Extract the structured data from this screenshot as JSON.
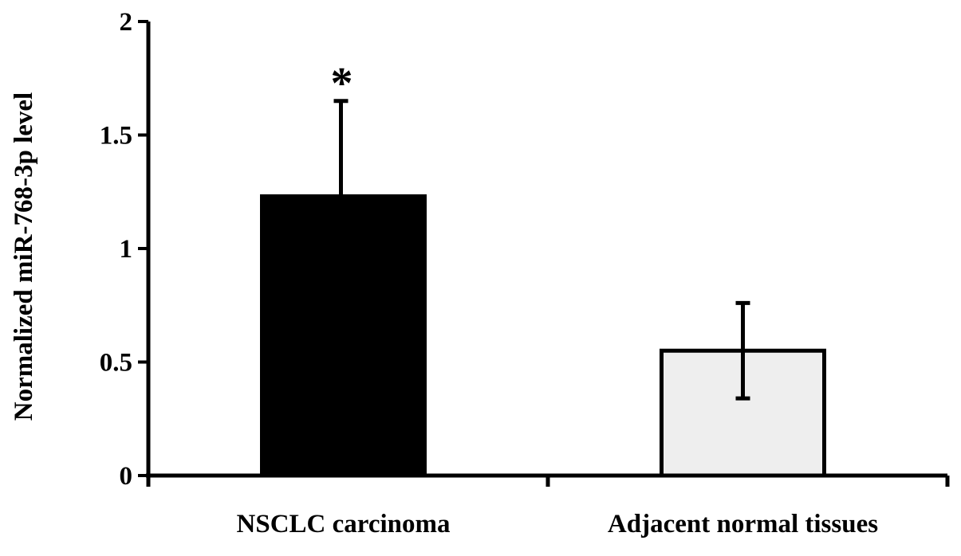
{
  "chart_data": {
    "type": "bar",
    "title": "",
    "xlabel": "",
    "ylabel": "Normalized miR-768-3p level",
    "ylim": [
      0,
      2
    ],
    "yticks": [
      "0",
      "0.5",
      "1",
      "1.5",
      "2"
    ],
    "categories": [
      "NSCLC carcinoma",
      "Adjacent normal tissues"
    ],
    "values": [
      1.23,
      0.55
    ],
    "error_bars": [
      0.42,
      0.21
    ],
    "bar_colors": [
      "#000000",
      "#eeeeee"
    ],
    "annotations": [
      "*",
      ""
    ],
    "grid": false,
    "legend": "none"
  }
}
